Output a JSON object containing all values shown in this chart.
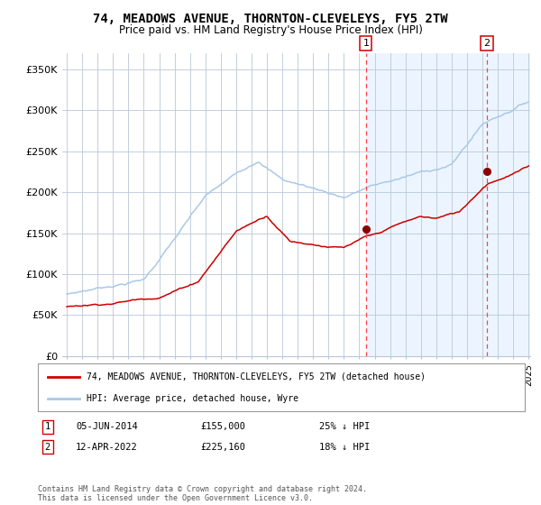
{
  "title": "74, MEADOWS AVENUE, THORNTON-CLEVELEYS, FY5 2TW",
  "subtitle": "Price paid vs. HM Land Registry's House Price Index (HPI)",
  "legend_line1": "74, MEADOWS AVENUE, THORNTON-CLEVELEYS, FY5 2TW (detached house)",
  "legend_line2": "HPI: Average price, detached house, Wyre",
  "sale1_date": "05-JUN-2014",
  "sale1_price": 155000,
  "sale1_pct": "25% ↓ HPI",
  "sale2_date": "12-APR-2022",
  "sale2_price": 225160,
  "sale2_pct": "18% ↓ HPI",
  "footer": "Contains HM Land Registry data © Crown copyright and database right 2024.\nThis data is licensed under the Open Government Licence v3.0.",
  "hpi_color": "#aac8e8",
  "price_color": "#cc0000",
  "dot_color": "#8b0000",
  "vline_color": "#ff4444",
  "bg_color": "#ddeeff",
  "ylabel_values": [
    "£0",
    "£50K",
    "£100K",
    "£150K",
    "£200K",
    "£250K",
    "£300K",
    "£350K"
  ],
  "ylabel_nums": [
    0,
    50000,
    100000,
    150000,
    200000,
    250000,
    300000,
    350000
  ],
  "sale1_x": 2014.43,
  "sale2_x": 2022.28,
  "xmin": 1995,
  "xmax": 2025
}
